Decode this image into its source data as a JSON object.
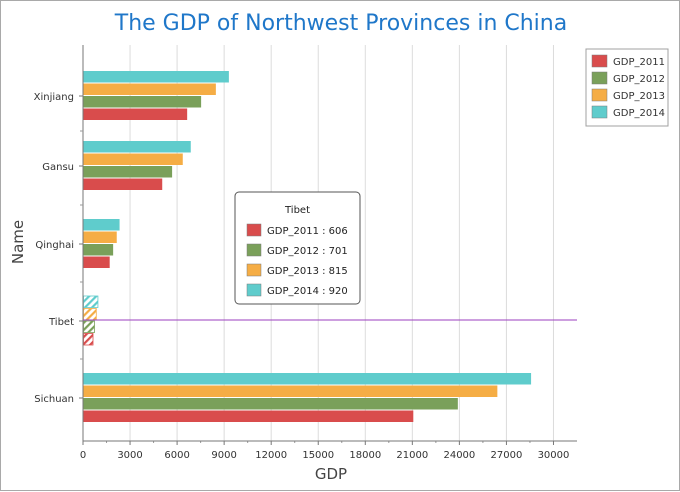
{
  "chart_data": {
    "type": "bar",
    "orientation": "horizontal",
    "title": "The GDP of Northwest Provinces in China",
    "xlabel": "GDP",
    "ylabel": "Name",
    "categories": [
      "Xinjiang",
      "Gansu",
      "Qinghai",
      "Tibet",
      "Sichuan"
    ],
    "series": [
      {
        "name": "GDP_2011",
        "color": "#d94c4c",
        "values": [
          6610,
          5020,
          1670,
          606,
          21030
        ]
      },
      {
        "name": "GDP_2012",
        "color": "#7aa05a",
        "values": [
          7500,
          5650,
          1890,
          701,
          23870
        ]
      },
      {
        "name": "GDP_2013",
        "color": "#f5ad45",
        "values": [
          8440,
          6330,
          2120,
          815,
          26390
        ]
      },
      {
        "name": "GDP_2014",
        "color": "#5fcccc",
        "values": [
          9270,
          6840,
          2300,
          920,
          28540
        ]
      }
    ],
    "xlim": [
      0,
      31500
    ],
    "xticks": [
      "0",
      "3000",
      "6000",
      "9000",
      "12000",
      "15000",
      "18000",
      "21000",
      "24000",
      "27000",
      "30000"
    ],
    "xtick_values": [
      0,
      3000,
      6000,
      9000,
      12000,
      15000,
      18000,
      21000,
      24000,
      27000,
      30000
    ],
    "grid": true,
    "legend_position": "top-right",
    "highlighted_category": "Tibet",
    "tooltip": {
      "title": "Tibet",
      "items": [
        "GDP_2011 : 606",
        "GDP_2012 : 701",
        "GDP_2013 : 815",
        "GDP_2014 : 920"
      ]
    },
    "crosshair_color": "#9b3fbf"
  }
}
